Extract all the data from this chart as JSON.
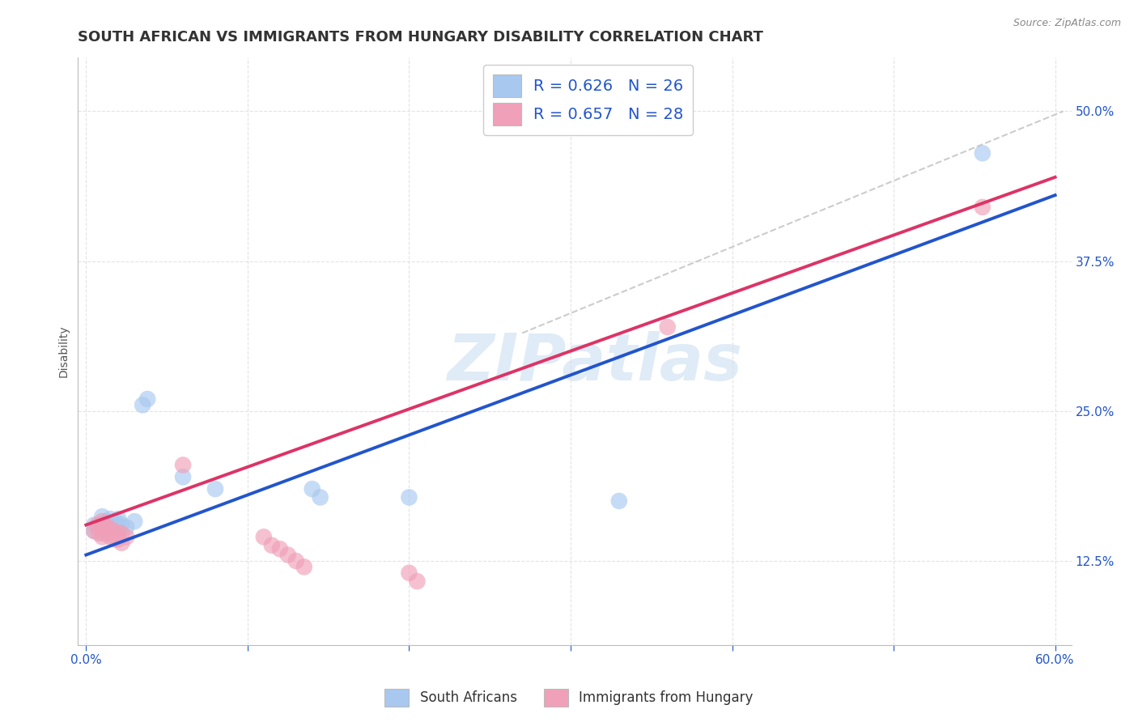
{
  "title": "SOUTH AFRICAN VS IMMIGRANTS FROM HUNGARY DISABILITY CORRELATION CHART",
  "source": "Source: ZipAtlas.com",
  "ylabel": "Disability",
  "legend_label1": "South Africans",
  "legend_label2": "Immigrants from Hungary",
  "r1": 0.626,
  "n1": 26,
  "r2": 0.657,
  "n2": 28,
  "color_blue": "#A8C8F0",
  "color_pink": "#F0A0B8",
  "color_line_blue": "#2255CC",
  "color_line_pink": "#DD3366",
  "color_line_gray": "#CCCCCC",
  "watermark_text": "ZIPatlas",
  "xlim": [
    -0.005,
    0.61
  ],
  "ylim": [
    0.055,
    0.545
  ],
  "xtick_vals": [
    0.0,
    0.1,
    0.2,
    0.3,
    0.4,
    0.5,
    0.6
  ],
  "xtick_labels": [
    "0.0%",
    "",
    "",
    "",
    "",
    "",
    "60.0%"
  ],
  "ytick_vals": [
    0.125,
    0.25,
    0.375,
    0.5
  ],
  "ytick_labels": [
    "12.5%",
    "25.0%",
    "37.5%",
    "50.0%"
  ],
  "blue_points": [
    [
      0.005,
      0.155
    ],
    [
      0.005,
      0.15
    ],
    [
      0.008,
      0.155
    ],
    [
      0.01,
      0.155
    ],
    [
      0.01,
      0.148
    ],
    [
      0.01,
      0.162
    ],
    [
      0.012,
      0.155
    ],
    [
      0.013,
      0.158
    ],
    [
      0.015,
      0.16
    ],
    [
      0.015,
      0.153
    ],
    [
      0.018,
      0.158
    ],
    [
      0.018,
      0.152
    ],
    [
      0.02,
      0.16
    ],
    [
      0.02,
      0.153
    ],
    [
      0.022,
      0.155
    ],
    [
      0.025,
      0.153
    ],
    [
      0.03,
      0.158
    ],
    [
      0.035,
      0.255
    ],
    [
      0.038,
      0.26
    ],
    [
      0.06,
      0.195
    ],
    [
      0.08,
      0.185
    ],
    [
      0.14,
      0.185
    ],
    [
      0.145,
      0.178
    ],
    [
      0.2,
      0.178
    ],
    [
      0.33,
      0.175
    ],
    [
      0.555,
      0.465
    ]
  ],
  "pink_points": [
    [
      0.005,
      0.15
    ],
    [
      0.007,
      0.155
    ],
    [
      0.008,
      0.148
    ],
    [
      0.01,
      0.158
    ],
    [
      0.01,
      0.152
    ],
    [
      0.01,
      0.145
    ],
    [
      0.012,
      0.155
    ],
    [
      0.013,
      0.148
    ],
    [
      0.015,
      0.152
    ],
    [
      0.015,
      0.145
    ],
    [
      0.017,
      0.15
    ],
    [
      0.018,
      0.143
    ],
    [
      0.02,
      0.148
    ],
    [
      0.02,
      0.143
    ],
    [
      0.022,
      0.148
    ],
    [
      0.022,
      0.14
    ],
    [
      0.025,
      0.145
    ],
    [
      0.06,
      0.205
    ],
    [
      0.11,
      0.145
    ],
    [
      0.115,
      0.138
    ],
    [
      0.12,
      0.135
    ],
    [
      0.125,
      0.13
    ],
    [
      0.13,
      0.125
    ],
    [
      0.135,
      0.12
    ],
    [
      0.2,
      0.115
    ],
    [
      0.205,
      0.108
    ],
    [
      0.36,
      0.32
    ],
    [
      0.555,
      0.42
    ]
  ],
  "background_color": "#FFFFFF",
  "grid_color": "#DDDDDD",
  "title_color": "#333333",
  "axis_tick_color": "#2255CC",
  "title_fontsize": 13,
  "tick_fontsize": 11
}
